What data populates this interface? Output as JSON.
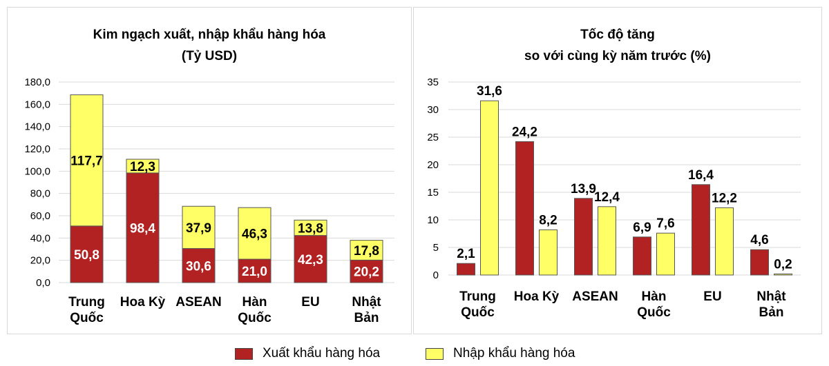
{
  "colors": {
    "export": "#b22222",
    "import": "#ffff66",
    "bar_border": "#555555",
    "grid": "#d9d9d9"
  },
  "legend": {
    "export_label": "Xuất khẩu hàng hóa",
    "import_label": "Nhập khẩu hàng hóa"
  },
  "chart_data": [
    {
      "type": "bar",
      "stacked": true,
      "title_line1": "Kim ngạch xuất, nhập khẩu hàng hóa",
      "title_line2": "(Tỷ USD)",
      "categories": [
        [
          "Trung",
          "Quốc"
        ],
        [
          "Hoa Kỳ"
        ],
        [
          "ASEAN"
        ],
        [
          "Hàn",
          "Quốc"
        ],
        [
          "EU"
        ],
        [
          "Nhật",
          "Bản"
        ]
      ],
      "series": [
        {
          "name": "Xuất khẩu hàng hóa",
          "values": [
            50.8,
            98.4,
            30.6,
            21.0,
            42.3,
            20.2
          ],
          "labels": [
            "50,8",
            "98,4",
            "30,6",
            "21,0",
            "42,3",
            "20,2"
          ]
        },
        {
          "name": "Nhập khẩu hàng hóa",
          "values": [
            117.7,
            12.3,
            37.9,
            46.3,
            13.8,
            17.8
          ],
          "labels": [
            "117,7",
            "12,3",
            "37,9",
            "46,3",
            "13,8",
            "17,8"
          ]
        }
      ],
      "ylim": [
        0,
        180
      ],
      "yticks": [
        "0,0",
        "20,0",
        "40,0",
        "60,0",
        "80,0",
        "100,0",
        "120,0",
        "140,0",
        "160,0",
        "180,0"
      ],
      "grid": true
    },
    {
      "type": "bar",
      "stacked": false,
      "title_line1": "Tốc độ tăng",
      "title_line2": "so với cùng kỳ năm trước (%)",
      "categories": [
        [
          "Trung",
          "Quốc"
        ],
        [
          "Hoa Kỳ"
        ],
        [
          "ASEAN"
        ],
        [
          "Hàn",
          "Quốc"
        ],
        [
          "EU"
        ],
        [
          "Nhật",
          "Bản"
        ]
      ],
      "series": [
        {
          "name": "Xuất khẩu hàng hóa",
          "values": [
            2.1,
            24.2,
            13.9,
            6.9,
            16.4,
            4.6
          ],
          "labels": [
            "2,1",
            "24,2",
            "13,9",
            "6,9",
            "16,4",
            "4,6"
          ]
        },
        {
          "name": "Nhập khẩu hàng hóa",
          "values": [
            31.6,
            8.2,
            12.4,
            7.6,
            12.2,
            0.2
          ],
          "labels": [
            "31,6",
            "8,2",
            "12,4",
            "7,6",
            "12,2",
            "0,2"
          ]
        }
      ],
      "ylim": [
        0,
        35
      ],
      "yticks": [
        "0",
        "5",
        "10",
        "15",
        "20",
        "25",
        "30",
        "35"
      ],
      "grid": true
    }
  ]
}
